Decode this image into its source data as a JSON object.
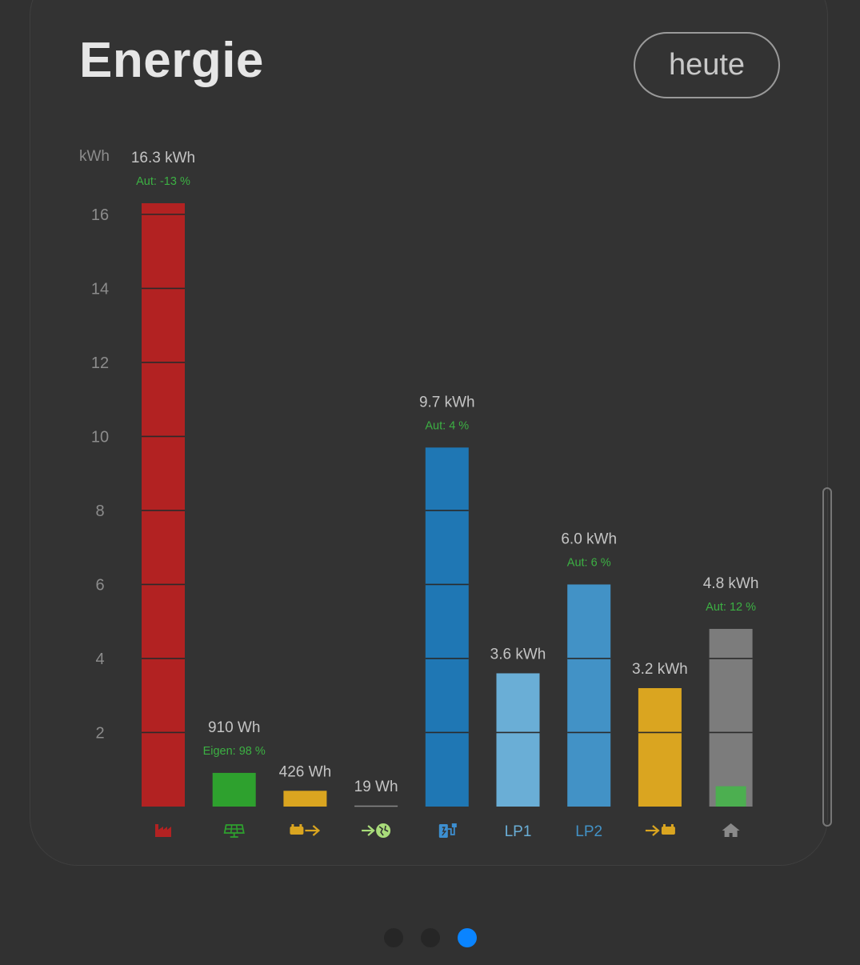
{
  "title": "Energie",
  "period_button": "heute",
  "chart_data": {
    "type": "bar",
    "ylabel": "kWh",
    "ylim": [
      0,
      16.3
    ],
    "yticks": [
      2,
      4,
      6,
      8,
      10,
      12,
      14,
      16
    ],
    "categories": [
      "factory-icon",
      "solar-panel-icon",
      "battery-discharge-icon",
      "grid-export-icon",
      "ev-charger-icon",
      "LP1",
      "LP2",
      "battery-charge-icon",
      "house-icon"
    ],
    "bars": [
      {
        "key": "grid-import",
        "value": 16.3,
        "label": "16.3 kWh",
        "sub": "Aut: -13 %",
        "color": "#b22222",
        "category": {
          "kind": "icon",
          "icon": "factory-icon",
          "color": "#b22222"
        }
      },
      {
        "key": "pv",
        "value": 0.91,
        "label": "910 Wh",
        "sub": "Eigen: 98 %",
        "color": "#2ea12e",
        "category": {
          "kind": "icon",
          "icon": "solar-panel-icon",
          "color": "#2ea12e"
        }
      },
      {
        "key": "battery-out",
        "value": 0.426,
        "label": "426 Wh",
        "sub": "",
        "color": "#daa520",
        "category": {
          "kind": "icon",
          "icon": "battery-discharge-icon",
          "color": "#daa520"
        }
      },
      {
        "key": "grid-export",
        "value": 0.019,
        "label": "19 Wh",
        "sub": "",
        "color": "#a9dc7a",
        "category": {
          "kind": "icon",
          "icon": "grid-export-icon",
          "color": "#a9dc7a"
        }
      },
      {
        "key": "charging",
        "value": 9.7,
        "label": "9.7 kWh",
        "sub": "Aut: 4 %",
        "color": "#1f77b4",
        "category": {
          "kind": "icon",
          "icon": "ev-charger-icon",
          "color": "#3d8fd1"
        }
      },
      {
        "key": "lp1",
        "value": 3.6,
        "label": "3.6 kWh",
        "sub": "",
        "color": "#6aaed6",
        "category": {
          "kind": "text",
          "text": "LP1",
          "color": "#6aaed6"
        }
      },
      {
        "key": "lp2",
        "value": 6.0,
        "label": "6.0 kWh",
        "sub": "Aut: 6 %",
        "color": "#4292c6",
        "category": {
          "kind": "text",
          "text": "LP2",
          "color": "#4292c6"
        }
      },
      {
        "key": "battery-in",
        "value": 3.2,
        "label": "3.2 kWh",
        "sub": "",
        "color": "#daa520",
        "category": {
          "kind": "icon",
          "icon": "battery-charge-icon",
          "color": "#daa520"
        }
      },
      {
        "key": "house",
        "value": 4.8,
        "label": "4.8 kWh",
        "sub": "Aut: 12 %",
        "color": "#7c7c7c",
        "inner_value": 0.55,
        "inner_color": "#4caf50",
        "category": {
          "kind": "icon",
          "icon": "house-icon",
          "color": "#8a8a8a"
        }
      }
    ],
    "sub_label_color": "#3cb043",
    "grid": false
  },
  "pager": {
    "count": 3,
    "active": 2
  }
}
